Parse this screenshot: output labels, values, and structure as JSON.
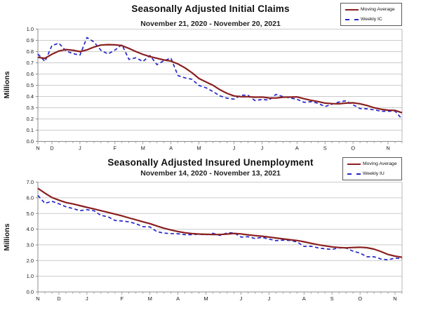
{
  "figure": {
    "background": "#ffffff"
  },
  "chart_data": [
    {
      "type": "line",
      "title": "Seasonally Adjusted Initial Claims",
      "subtitle": "November 21, 2020 - November 20, 2021",
      "ylabel": "Millions",
      "ylim": [
        0.0,
        1.0
      ],
      "ytick_labels": [
        "1.0",
        "0.9",
        "0.8",
        "0.7",
        "0.6",
        "0.5",
        "0.4",
        "0.3",
        "0.2",
        "0.1",
        "0.0"
      ],
      "xtick_labels": [
        "N",
        "D",
        "J",
        "F",
        "M",
        "A",
        "M",
        "J",
        "J",
        "A",
        "S",
        "O",
        "N"
      ],
      "xtick_weeks": [
        0,
        2,
        6,
        11,
        15,
        19,
        23,
        28,
        32,
        37,
        41,
        45,
        50
      ],
      "grid": true,
      "legend_position": "top-right",
      "grid_color": "#cccccc",
      "axis_color": "#8c8c8c",
      "series": [
        {
          "name": "Moving Average",
          "style": "solid",
          "color": "#8b1f1f",
          "values": [
            0.749,
            0.74,
            0.776,
            0.805,
            0.818,
            0.812,
            0.8,
            0.815,
            0.84,
            0.858,
            0.862,
            0.86,
            0.853,
            0.828,
            0.8,
            0.775,
            0.755,
            0.74,
            0.725,
            0.715,
            0.69,
            0.655,
            0.612,
            0.56,
            0.53,
            0.5,
            0.46,
            0.428,
            0.405,
            0.398,
            0.398,
            0.394,
            0.395,
            0.387,
            0.386,
            0.394,
            0.395,
            0.396,
            0.38,
            0.366,
            0.355,
            0.341,
            0.336,
            0.335,
            0.341,
            0.344,
            0.335,
            0.32,
            0.3,
            0.286,
            0.278,
            0.276,
            0.255
          ]
        },
        {
          "name": "Weekly IC",
          "style": "dashed",
          "color": "#2626c9",
          "values": [
            0.778,
            0.712,
            0.853,
            0.875,
            0.806,
            0.782,
            0.768,
            0.925,
            0.886,
            0.812,
            0.779,
            0.813,
            0.861,
            0.73,
            0.745,
            0.712,
            0.765,
            0.684,
            0.719,
            0.742,
            0.586,
            0.566,
            0.553,
            0.498,
            0.478,
            0.444,
            0.405,
            0.385,
            0.376,
            0.412,
            0.411,
            0.364,
            0.373,
            0.368,
            0.419,
            0.399,
            0.387,
            0.375,
            0.348,
            0.354,
            0.34,
            0.31,
            0.332,
            0.351,
            0.362,
            0.326,
            0.293,
            0.29,
            0.281,
            0.269,
            0.269,
            0.27,
            0.199
          ]
        }
      ]
    },
    {
      "type": "line",
      "title": "Seasonally Adjusted Insured Unemployment",
      "subtitle": "November 14, 2020 - November 13, 2021",
      "ylabel": "Millions",
      "ylim": [
        0.0,
        7.0
      ],
      "ytick_labels": [
        "7.0",
        "6.0",
        "5.0",
        "4.0",
        "3.0",
        "2.0",
        "1.0",
        "0.0"
      ],
      "xtick_labels": [
        "N",
        "D",
        "J",
        "F",
        "M",
        "A",
        "M",
        "J",
        "J",
        "A",
        "S",
        "O",
        "N"
      ],
      "xtick_weeks": [
        0,
        3,
        7,
        12,
        16,
        20,
        24,
        29,
        33,
        38,
        42,
        46,
        51
      ],
      "grid": true,
      "legend_position": "top-right",
      "grid_color": "#cccccc",
      "axis_color": "#8c8c8c",
      "series": [
        {
          "name": "Moving Average",
          "style": "solid",
          "color": "#8b1f1f",
          "values": [
            6.6,
            6.3,
            6.02,
            5.85,
            5.7,
            5.61,
            5.5,
            5.39,
            5.29,
            5.18,
            5.07,
            4.96,
            4.85,
            4.72,
            4.6,
            4.47,
            4.35,
            4.2,
            4.06,
            3.95,
            3.85,
            3.77,
            3.72,
            3.69,
            3.67,
            3.66,
            3.66,
            3.69,
            3.73,
            3.7,
            3.64,
            3.59,
            3.55,
            3.5,
            3.44,
            3.38,
            3.33,
            3.28,
            3.2,
            3.1,
            3.01,
            2.94,
            2.87,
            2.83,
            2.81,
            2.83,
            2.85,
            2.82,
            2.73,
            2.57,
            2.39,
            2.28,
            2.21
          ]
        },
        {
          "name": "Weekly IU",
          "style": "dashed",
          "color": "#2626c9",
          "values": [
            6.15,
            5.65,
            5.78,
            5.62,
            5.43,
            5.32,
            5.18,
            5.24,
            5.18,
            4.88,
            4.79,
            4.56,
            4.52,
            4.47,
            4.35,
            4.16,
            4.14,
            3.84,
            3.75,
            3.72,
            3.71,
            3.65,
            3.65,
            3.68,
            3.64,
            3.74,
            3.6,
            3.76,
            3.77,
            3.5,
            3.52,
            3.41,
            3.48,
            3.37,
            3.27,
            3.3,
            3.28,
            3.19,
            2.9,
            2.91,
            2.81,
            2.75,
            2.71,
            2.81,
            2.8,
            2.6,
            2.48,
            2.24,
            2.24,
            2.1,
            2.05,
            2.16,
            2.12
          ]
        }
      ]
    }
  ]
}
